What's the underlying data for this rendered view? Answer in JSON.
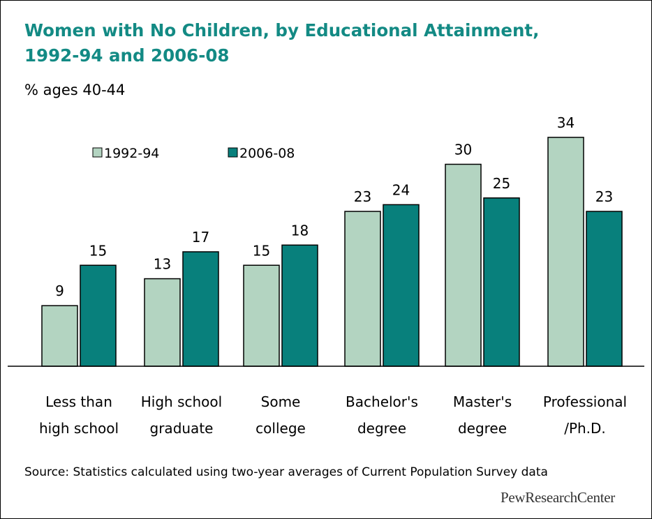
{
  "title_line1": "Women with No Children, by Educational Attainment,",
  "title_line2": "1992-94 and 2006-08",
  "subtitle": "% ages 40-44",
  "source": "Source:  Statistics calculated using two-year averages of Current Population Survey data",
  "brand": "PewResearchCenter",
  "colors": {
    "title": "#138a84",
    "series_1992": "#b3d4c1",
    "series_2006": "#08807c"
  },
  "chart_data": {
    "type": "bar",
    "categories": [
      [
        "Less than",
        "high school"
      ],
      [
        "High school",
        "graduate"
      ],
      [
        "Some",
        "college"
      ],
      [
        "Bachelor's",
        "degree"
      ],
      [
        "Master's",
        "degree"
      ],
      [
        "Professional",
        "/Ph.D."
      ]
    ],
    "series": [
      {
        "name": "1992-94",
        "values": [
          9,
          13,
          15,
          23,
          30,
          34
        ],
        "color": "#b3d4c1"
      },
      {
        "name": "2006-08",
        "values": [
          15,
          17,
          18,
          24,
          25,
          23
        ],
        "color": "#08807c"
      }
    ],
    "ylim": [
      0,
      40
    ],
    "legend": "top-left",
    "data_labels": true,
    "grid": false
  }
}
